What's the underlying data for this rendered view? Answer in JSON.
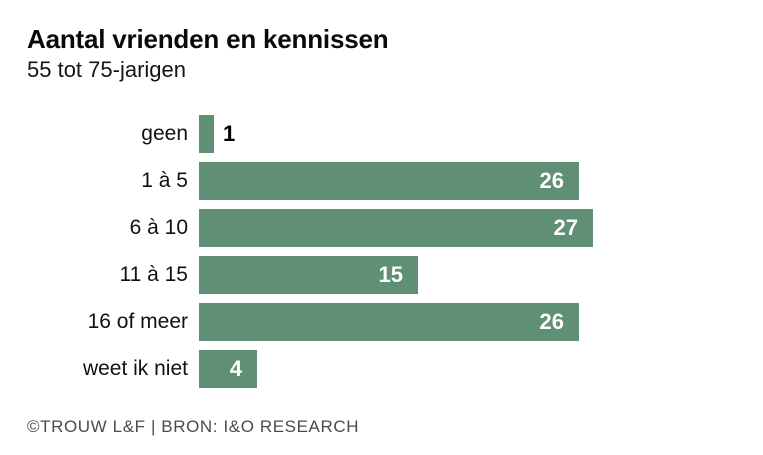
{
  "header": {
    "title": "Aantal vrienden en kennissen",
    "subtitle": "55 tot 75-jarigen"
  },
  "chart_data": {
    "type": "bar",
    "orientation": "horizontal",
    "title": "Aantal vrienden en kennissen",
    "subtitle": "55 tot 75-jarigen",
    "categories": [
      "geen",
      "1 à 5",
      "6 à 10",
      "11 à 15",
      "16 of meer",
      "weet ik niet"
    ],
    "values": [
      1,
      26,
      27,
      15,
      26,
      4
    ],
    "xlim": [
      0,
      27
    ],
    "grid": false,
    "legend": false,
    "bar_color": "#5f8f74",
    "value_label_color_inside": "#ffffff",
    "value_label_color_outside": "#000000"
  },
  "footer": {
    "credit": "©TROUW L&F | BRON: I&O RESEARCH"
  }
}
